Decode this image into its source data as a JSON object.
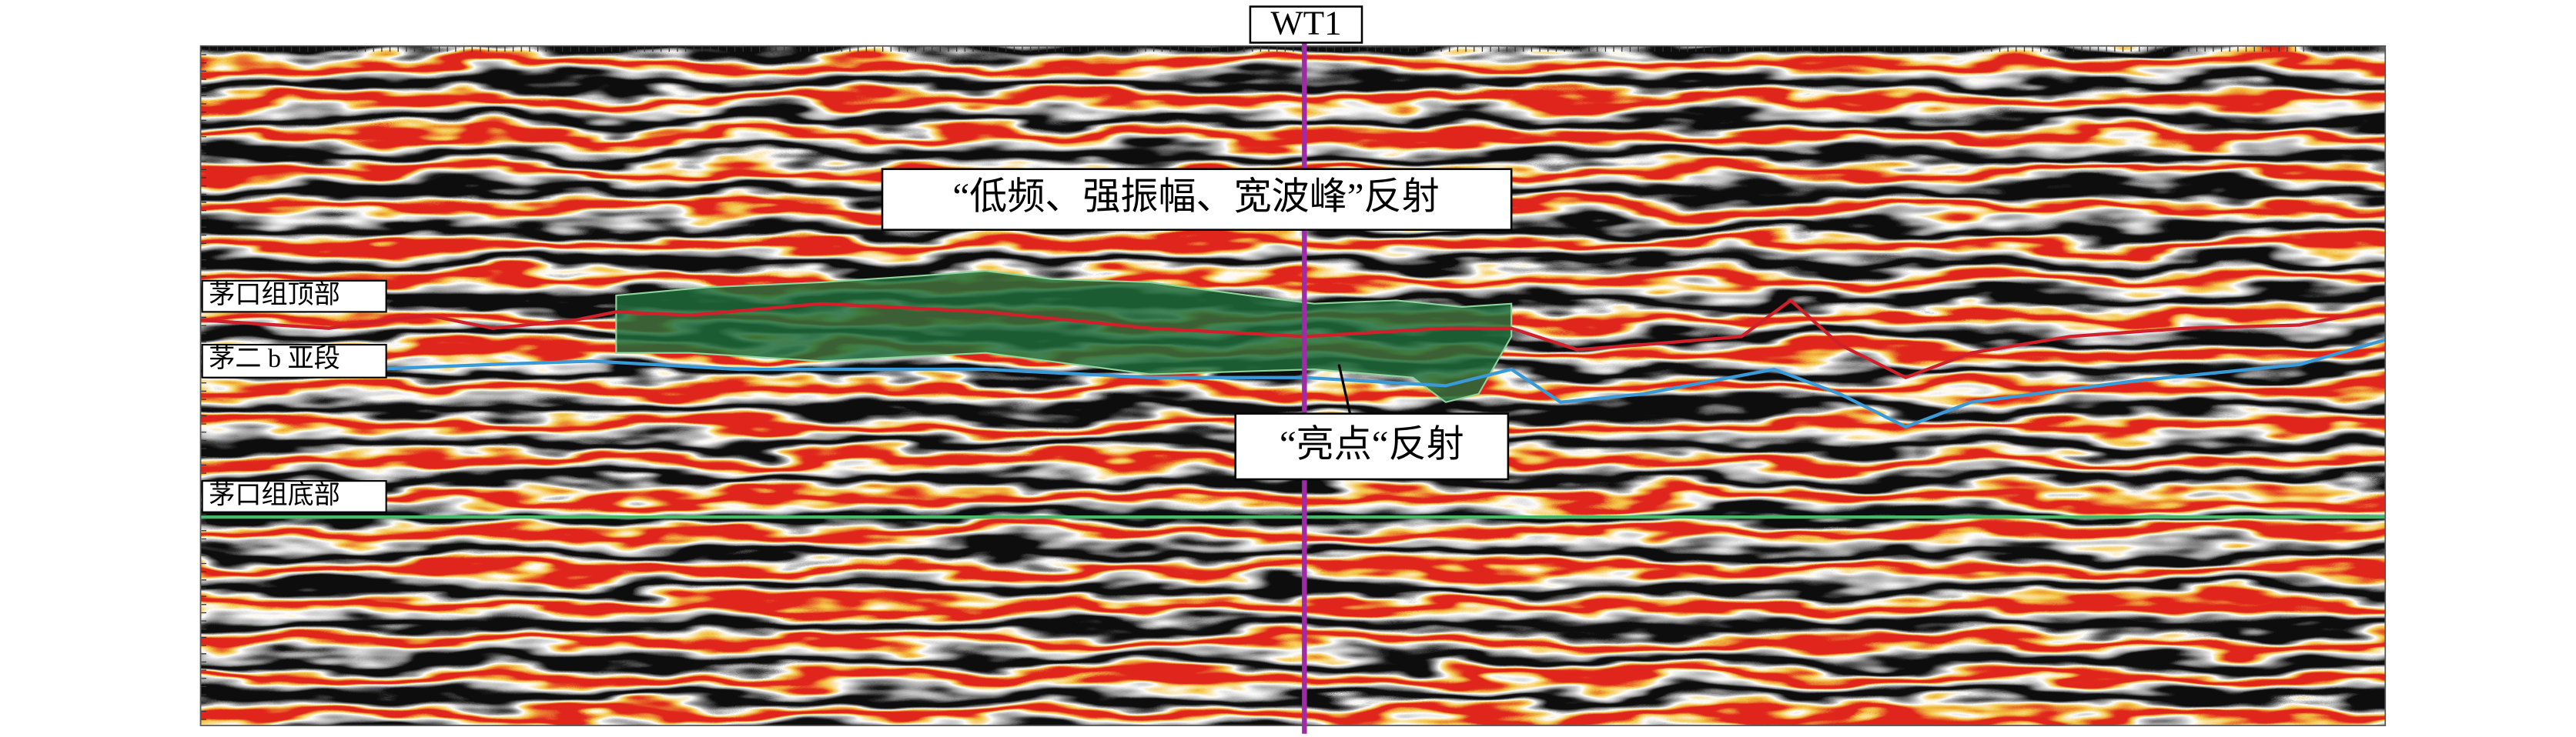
{
  "well": {
    "label": "WT1"
  },
  "annotations": [
    {
      "label": "“低频、强振幅、宽波峰”反射"
    },
    {
      "label": "“亮点“反射"
    }
  ],
  "horizons": [
    {
      "label": "茅口组顶部"
    },
    {
      "label": "茅二 b 亚段"
    },
    {
      "label": "茅口组底部"
    }
  ]
}
